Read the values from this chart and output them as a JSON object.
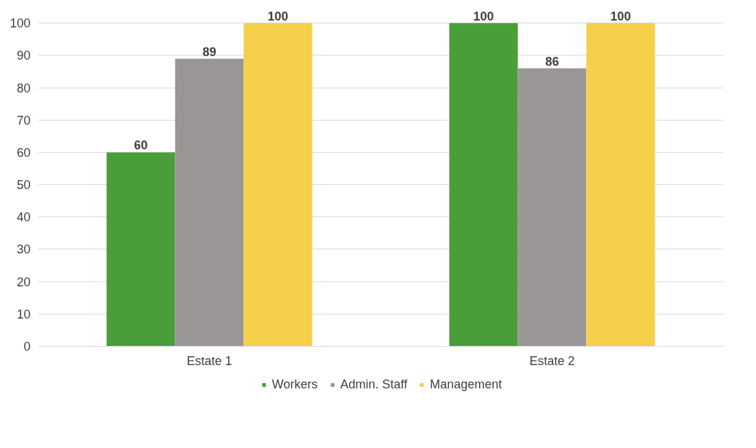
{
  "chart_data": {
    "type": "bar",
    "categories": [
      "Estate 1",
      "Estate 2"
    ],
    "series": [
      {
        "name": "Workers",
        "color": "#4a9e3a",
        "values": [
          60,
          100
        ]
      },
      {
        "name": "Admin. Staff",
        "color": "#9a9695",
        "values": [
          89,
          86
        ]
      },
      {
        "name": "Management",
        "color": "#f5d04b",
        "values": [
          100,
          100
        ]
      }
    ],
    "ylim": [
      0,
      100
    ],
    "yticks": [
      0,
      10,
      20,
      30,
      40,
      50,
      60,
      70,
      80,
      90,
      100
    ],
    "grid": "y",
    "legend": "bottom",
    "data_labels": true
  }
}
